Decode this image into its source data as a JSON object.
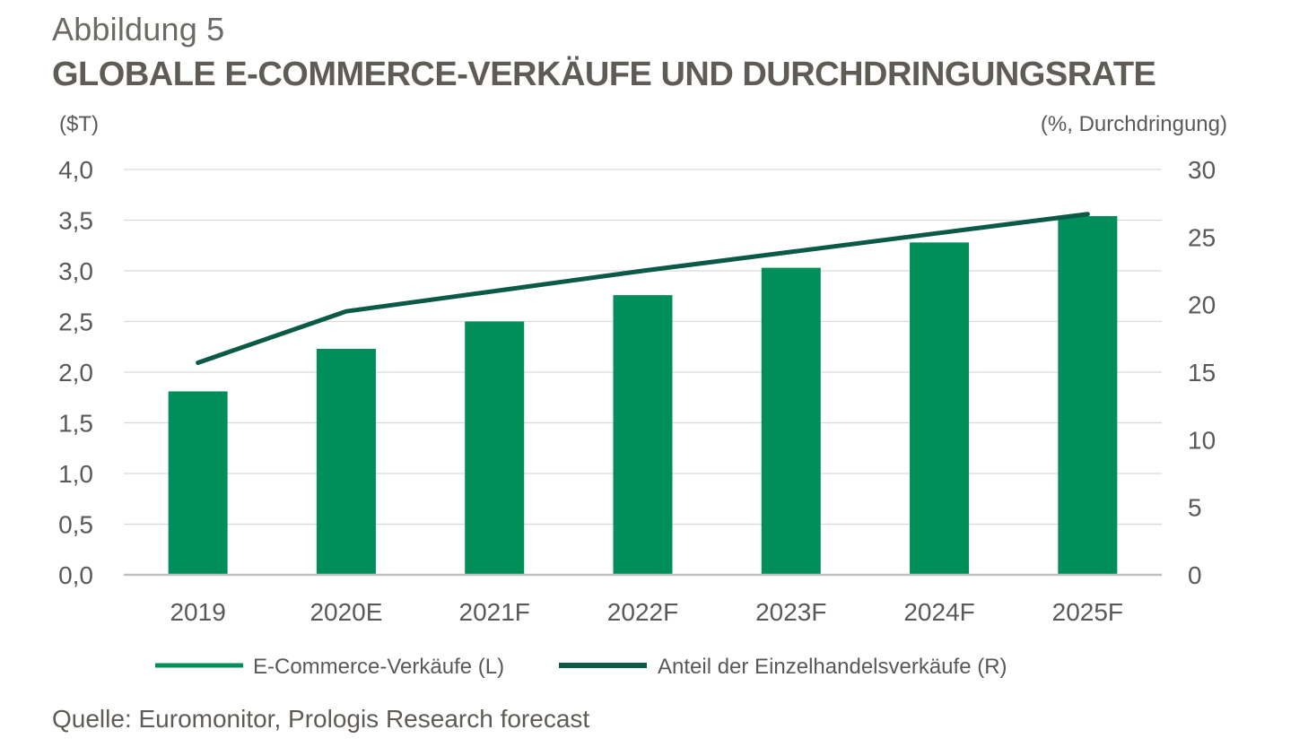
{
  "header": {
    "kicker": "Abbildung 5",
    "title": "GLOBALE E-COMMERCE-VERKÄUFE UND DURCHDRINGUNGSRATE"
  },
  "footer": {
    "source": "Quelle: Euromonitor, Prologis Research forecast"
  },
  "colors": {
    "bar": "#008f5a",
    "line": "#0b5a47",
    "grid": "#d9d9d9",
    "axis": "#bfbfbf",
    "text": "#595959"
  },
  "chart_data": {
    "type": "bar",
    "categories": [
      "2019",
      "2020E",
      "2021F",
      "2022F",
      "2023F",
      "2024F",
      "2025F"
    ],
    "left_axis": {
      "unit_label": "($T)",
      "ylim": [
        0,
        4
      ],
      "ticks": [
        "0,0",
        "0,5",
        "1,0",
        "1,5",
        "2,0",
        "2,5",
        "3,0",
        "3,5",
        "4,0"
      ]
    },
    "right_axis": {
      "unit_label": "(%, Durchdringung)",
      "ylim": [
        0,
        30
      ],
      "ticks": [
        "0",
        "5",
        "10",
        "15",
        "20",
        "25",
        "30"
      ]
    },
    "series": [
      {
        "name": "E-Commerce-Verkäufe (L)",
        "type": "bar",
        "axis": "left",
        "values": [
          1.81,
          2.23,
          2.5,
          2.76,
          3.03,
          3.28,
          3.54
        ]
      },
      {
        "name": "Anteil der Einzelhandelsverkäufe (R)",
        "type": "line",
        "axis": "right",
        "values": [
          15.7,
          19.5,
          21.0,
          22.5,
          23.9,
          25.3,
          26.7
        ]
      }
    ],
    "grid": true,
    "legend_position": "bottom"
  }
}
